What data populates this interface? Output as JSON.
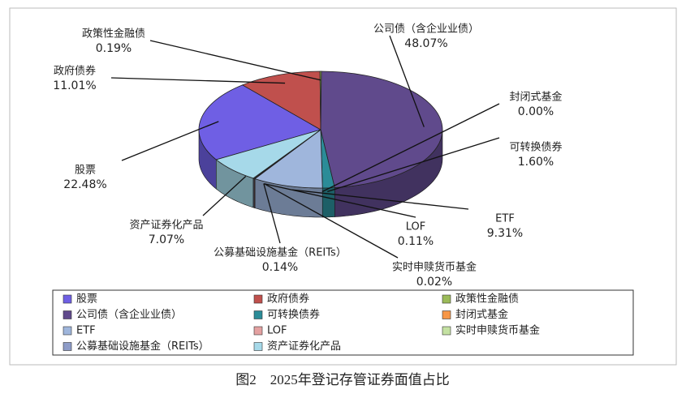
{
  "chart_data": {
    "type": "pie3d",
    "caption": "图2　2025年登记存管证券面值占比",
    "categories": [
      "股票",
      "政府债券",
      "政策性金融债",
      "公司债（含企业业债）",
      "可转换债券",
      "封闭式基金",
      "ETF",
      "LOF",
      "实时申赎货币基金",
      "公募基础设施基金（REITs）",
      "资产证券化产品"
    ],
    "values": [
      22.48,
      11.01,
      0.19,
      48.07,
      1.6,
      0.0,
      9.31,
      0.11,
      0.02,
      0.14,
      7.07
    ],
    "value_labels": [
      "22.48%",
      "11.01%",
      "0.19%",
      "48.07%",
      "1.60%",
      "0.00%",
      "9.31%",
      "0.11%",
      "0.02%",
      "0.14%",
      "7.07%"
    ],
    "colors": [
      "#6f5fe4",
      "#c0504d",
      "#9bbb59",
      "#604a8c",
      "#2b8c98",
      "#f79646",
      "#9fb6dc",
      "#e4a1a1",
      "#c4e1a2",
      "#8e9cc8",
      "#a6d9e9"
    ],
    "legend": "bottom"
  }
}
